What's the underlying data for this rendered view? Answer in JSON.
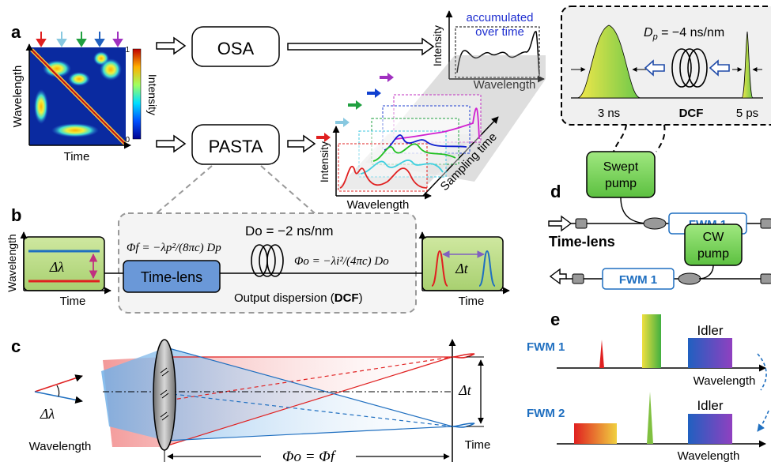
{
  "panels": {
    "a": {
      "label": "a",
      "heatmap": {
        "y_axis_label": "Wavelength",
        "x_axis_label": "Time",
        "colorbar_label": "Intensity",
        "colorbar_max": "1",
        "colorbar_min": "0",
        "arrow_colors": [
          "#e02020",
          "#88c8e0",
          "#20a040",
          "#2060c0",
          "#a030c0"
        ]
      },
      "osa_box": "OSA",
      "pasta_box": "PASTA",
      "spectrum_plot": {
        "y_label": "Intensity",
        "x_label": "Wavelength",
        "annotation_line1": "accumulated",
        "annotation_line2": "over time"
      },
      "waterfall": {
        "y_label": "Intensity",
        "x_label": "Wavelength",
        "depth_label": "Sampling time"
      },
      "inset": {
        "dispersion": "D",
        "dispersion_sub": "p",
        "dispersion_value": " = −4 ns/nm",
        "left_pulse_label": "3 ns",
        "fiber_label": "DCF",
        "right_pulse_label": "5 ps"
      }
    },
    "b": {
      "label": "b",
      "y_axis_label": "Wavelength",
      "left_x_label": "Time",
      "right_x_label": "Time",
      "delta_lambda": "Δλ",
      "delta_t": "Δt",
      "time_lens_box": "Time-lens",
      "phi_f_formula": "Φf = −λp²/(8πc) Dp",
      "output_dispersion_value": "Do = −2 ns/nm",
      "phi_o_formula": "Φo = −λi²/(4πc) Do",
      "output_dispersion_text": "Output dispersion (",
      "output_dispersion_bold": "DCF",
      "output_dispersion_close": ")"
    },
    "c": {
      "label": "c",
      "delta_lambda": "Δλ",
      "wavelength_label": "Wavelength",
      "delta_t": "Δt",
      "time_label": "Time",
      "phase_equation": "Φo = Φf"
    },
    "d": {
      "label": "d",
      "swept_pump_line1": "Swept",
      "swept_pump_line2": "pump",
      "fwm1_top": "FWM 1",
      "title": "Time-lens",
      "cw_pump_line1": "CW",
      "cw_pump_line2": "pump",
      "fwm1_bottom": "FWM 1"
    },
    "e": {
      "label": "e",
      "row1_label": "FWM 1",
      "row1_idler": "Idler",
      "row1_axis": "Wavelength",
      "row2_label": "FWM 2",
      "row2_idler": "Idler",
      "row2_axis": "Wavelength",
      "label_color": "#1f6fc0"
    }
  }
}
